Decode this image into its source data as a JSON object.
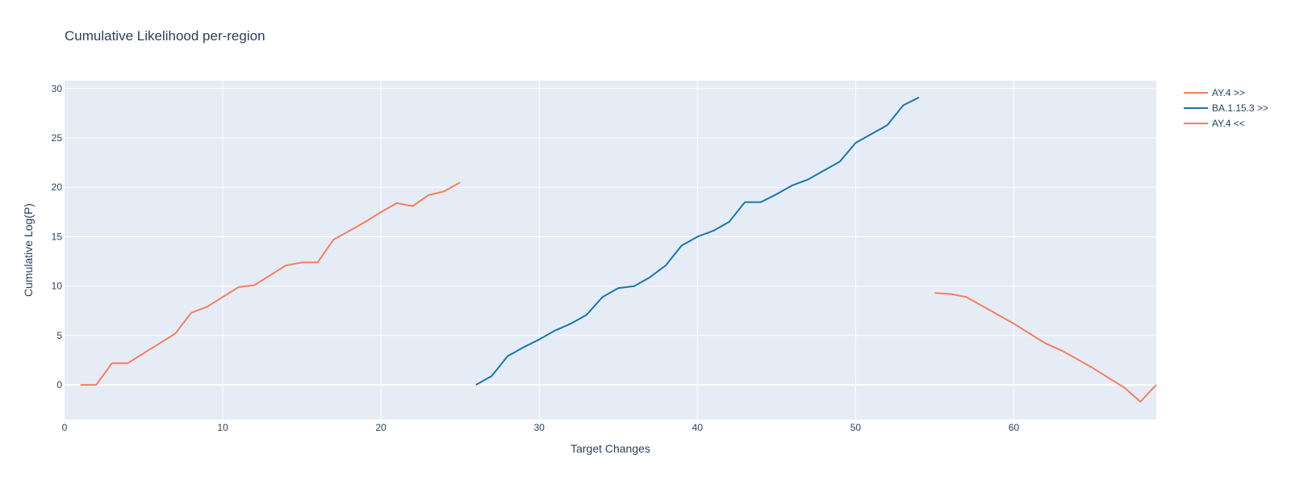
{
  "chart_data": {
    "type": "line",
    "title": "Cumulative Likelihood per-region",
    "xlabel": "Target Changes",
    "ylabel": "Cumulative Log(P)",
    "xlim": [
      0,
      69
    ],
    "ylim": [
      -3.5,
      30.8
    ],
    "x_ticks": [
      0,
      10,
      20,
      30,
      40,
      50,
      60
    ],
    "y_ticks": [
      0,
      5,
      10,
      15,
      20,
      25,
      30
    ],
    "grid": true,
    "legend_position": "top-right",
    "series": [
      {
        "name": "AY.4 >>",
        "color": "#f47f5f",
        "x": [
          1,
          2,
          3,
          4,
          5,
          6,
          7,
          8,
          9,
          10,
          11,
          12,
          13,
          14,
          15,
          16,
          17,
          18,
          19,
          20,
          21,
          22,
          23,
          24,
          25
        ],
        "y": [
          0,
          0,
          2.2,
          2.2,
          3.2,
          4.2,
          5.2,
          7.3,
          7.9,
          8.9,
          9.9,
          10.1,
          11.1,
          12.1,
          12.4,
          12.4,
          14.7,
          15.6,
          16.5,
          17.5,
          18.4,
          18.1,
          19.2,
          19.6,
          20.5
        ]
      },
      {
        "name": "BA.1.15.3 >>",
        "color": "#1777b0",
        "x": [
          26,
          27,
          28,
          29,
          30,
          31,
          32,
          33,
          34,
          35,
          36,
          37,
          38,
          39,
          40,
          41,
          42,
          43,
          44,
          45,
          46,
          47,
          48,
          49,
          50,
          51,
          52,
          53,
          54
        ],
        "y": [
          0,
          0.9,
          2.9,
          3.8,
          4.6,
          5.5,
          6.2,
          7.1,
          8.9,
          9.8,
          10,
          10.9,
          12.1,
          14.1,
          15,
          15.6,
          16.5,
          18.5,
          18.5,
          19.3,
          20.2,
          20.8,
          21.7,
          22.6,
          24.5,
          25.4,
          26.3,
          28.3,
          29.1
        ]
      },
      {
        "name": "AY.4 <<",
        "color": "#f47f5f",
        "x": [
          55,
          56,
          57,
          58,
          59,
          60,
          61,
          62,
          63,
          64,
          65,
          66,
          67,
          68,
          69
        ],
        "y": [
          9.3,
          9.2,
          8.9,
          8,
          7.1,
          6.2,
          5.2,
          4.2,
          3.5,
          2.6,
          1.7,
          0.7,
          -0.3,
          -1.7,
          0
        ]
      }
    ]
  }
}
